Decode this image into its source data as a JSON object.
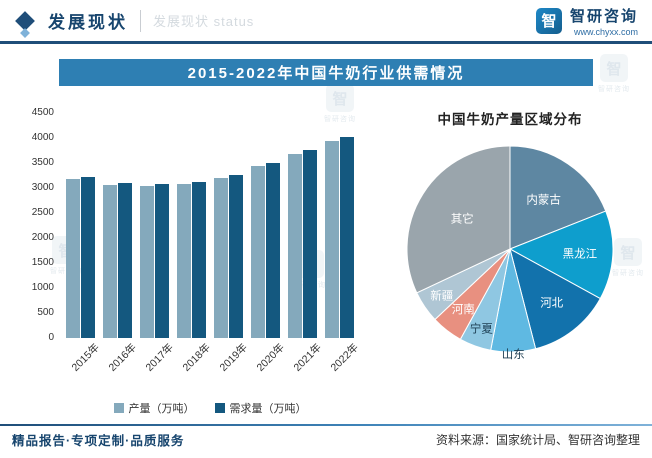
{
  "brand": {
    "name": "智研咨询",
    "logo_glyph": "智",
    "website": "www.chyxx.com"
  },
  "header": {
    "section_title": "发展现状",
    "watermark_text": "发展现状 status"
  },
  "watermark_brand": "智研咨询",
  "main_title": "2015-2022年中国牛奶行业供需情况",
  "chart_data": [
    {
      "type": "bar",
      "title": "2015-2022年中国牛奶行业供需情况",
      "categories": [
        "2015年",
        "2016年",
        "2017年",
        "2018年",
        "2019年",
        "2020年",
        "2021年",
        "2022年"
      ],
      "series": [
        {
          "name": "产量（万吨）",
          "color": "#84A9BC",
          "values": [
            3180,
            3064,
            3039,
            3075,
            3201,
            3440,
            3683,
            3932
          ]
        },
        {
          "name": "需求量（万吨）",
          "color": "#14587F",
          "values": [
            3225,
            3110,
            3085,
            3120,
            3255,
            3505,
            3760,
            4015
          ]
        }
      ],
      "xlabel": "",
      "ylabel": "",
      "ylim": [
        0,
        4500
      ],
      "yticks": [
        0,
        500,
        1000,
        1500,
        2000,
        2500,
        3000,
        3500,
        4000,
        4500
      ],
      "grid": false,
      "legend_position": "bottom"
    },
    {
      "type": "pie",
      "title": "中国牛奶产量区域分布",
      "slices": [
        {
          "label": "内蒙古",
          "value": 19,
          "color": "#5E87A2",
          "text_color": "#ffffff",
          "label_r": 0.58
        },
        {
          "label": "黑龙江",
          "value": 14,
          "color": "#0E9ECD",
          "text_color": "#ffffff",
          "label_r": 0.68
        },
        {
          "label": "河北",
          "value": 13,
          "color": "#1272AC",
          "text_color": "#ffffff",
          "label_r": 0.66
        },
        {
          "label": "山东",
          "value": 7,
          "color": "#5FB9E2",
          "text_color": "#1C3D52",
          "label_r": 1.02
        },
        {
          "label": "宁夏",
          "value": 5,
          "color": "#8FC7E2",
          "text_color": "#1C3D52",
          "label_r": 0.82
        },
        {
          "label": "河南",
          "value": 5,
          "color": "#E89080",
          "text_color": "#ffffff",
          "label_r": 0.74
        },
        {
          "label": "新疆",
          "value": 5,
          "color": "#AFC6D4",
          "text_color": "#ffffff",
          "label_r": 0.8
        },
        {
          "label": "其它",
          "value": 32,
          "color": "#9AA5AC",
          "text_color": "#ffffff",
          "label_r": 0.55
        }
      ]
    }
  ],
  "footer": {
    "left": "精品报告·专项定制·品质服务",
    "right": "资料来源：国家统计局、智研咨询整理"
  },
  "colors": {
    "navy": "#1F4E79",
    "title_bar_blue": "#2E7FB3",
    "production_bar": "#84A9BC",
    "demand_bar": "#14587F"
  }
}
